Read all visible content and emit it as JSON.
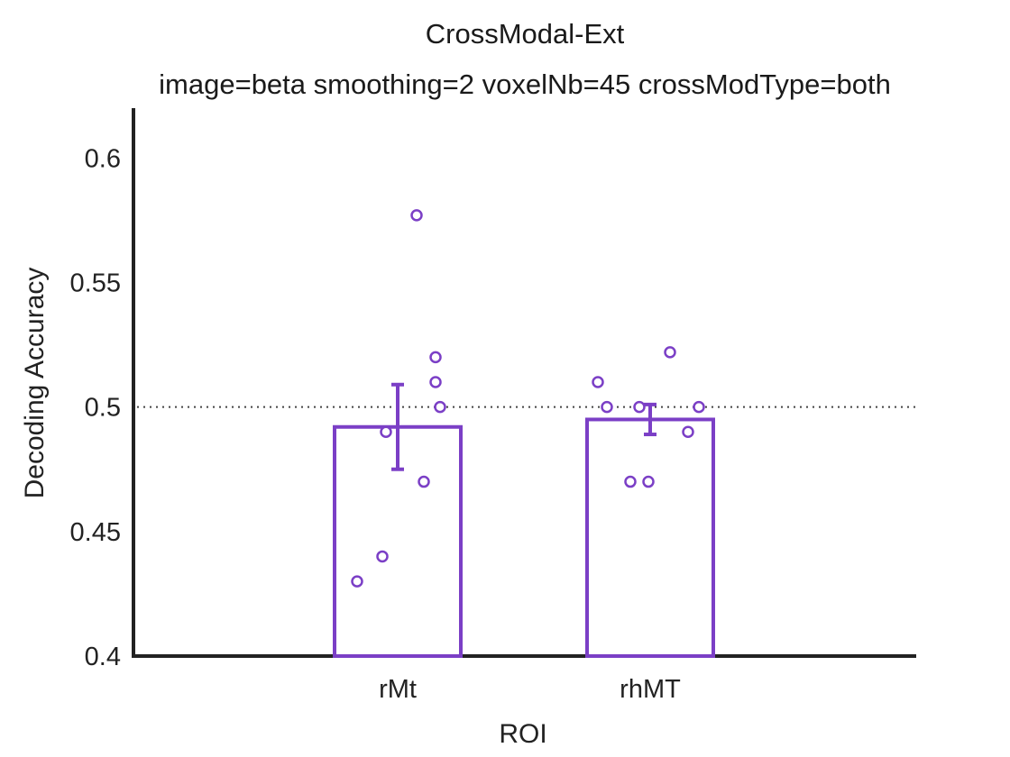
{
  "chart_data": {
    "type": "bar",
    "title": "CrossModal-Ext",
    "subtitle": "image=beta smoothing=2 voxelNb=45 crossModType=both",
    "xlabel": "ROI",
    "ylabel": "Decoding Accuracy",
    "ylim": [
      0.4,
      0.62
    ],
    "yticks": [
      0.4,
      0.45,
      0.5,
      0.55,
      0.6
    ],
    "ytick_labels": [
      "0.4",
      "0.45",
      "0.5",
      "0.55",
      "0.6"
    ],
    "chance_level": 0.5,
    "grid": false,
    "legend": "none",
    "categories": [
      "rMt",
      "rhMT"
    ],
    "values": [
      0.492,
      0.495
    ],
    "error": [
      {
        "low": 0.475,
        "high": 0.509
      },
      {
        "low": 0.489,
        "high": 0.501
      }
    ],
    "points": [
      [
        0.577,
        0.52,
        0.51,
        0.5,
        0.49,
        0.47,
        0.44,
        0.43
      ],
      [
        0.522,
        0.51,
        0.5,
        0.5,
        0.5,
        0.49,
        0.47,
        0.47
      ]
    ],
    "color": "#7b3fc6",
    "axis_color": "#222222"
  }
}
